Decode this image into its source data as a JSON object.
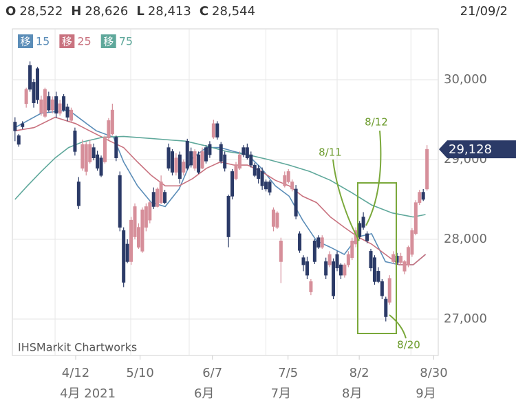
{
  "chart_data": {
    "type": "candlestick",
    "header": [
      {
        "key": "O",
        "value": "28,522"
      },
      {
        "key": "H",
        "value": "28,626"
      },
      {
        "key": "L",
        "value": "28,413"
      },
      {
        "key": "C",
        "value": "28,544"
      }
    ],
    "date": "21/09/2",
    "watermark": "IHSMarkit Chartworks",
    "ma_label": "移",
    "up_color": "#d68f9a",
    "down_color": "#2b3a67",
    "xlim": [
      -0.7,
      113
    ],
    "ylim": [
      26543,
      30638
    ],
    "yticks": [
      {
        "value": 27000,
        "label": "27,000"
      },
      {
        "value": 28000,
        "label": "28,000"
      },
      {
        "value": 29000,
        "label": "29,000"
      },
      {
        "value": 30000,
        "label": "30,000"
      }
    ],
    "xticks": [
      {
        "value": 16.2,
        "label": "4/12"
      },
      {
        "value": 33.4,
        "label": "5/10"
      },
      {
        "value": 52.7,
        "label": "6/7"
      },
      {
        "value": 72.9,
        "label": "7/5"
      },
      {
        "value": 91.9,
        "label": "8/2"
      },
      {
        "value": 111.8,
        "label": "8/30"
      }
    ],
    "month_ticks": [
      {
        "value": 10.7,
        "label": "4月 2021"
      },
      {
        "value": 46.5,
        "label": "6月"
      },
      {
        "value": 67,
        "label": "7月"
      },
      {
        "value": 86,
        "label": "8月"
      },
      {
        "value": 105.7,
        "label": "9月"
      }
    ],
    "grid_x": [
      10.7,
      30.9,
      46.5,
      67,
      86,
      105.7
    ],
    "price_tag": {
      "value": 29128,
      "label": "29,128"
    },
    "annotations": [
      "8/11",
      "8/12",
      "8/20"
    ],
    "candles": [
      [
        29470,
        29530,
        29230,
        29360
      ],
      [
        29300,
        29320,
        29160,
        29190
      ],
      [
        29450,
        29480,
        29380,
        29410
      ],
      [
        29700,
        29900,
        29650,
        29880
      ],
      [
        30180,
        30230,
        29850,
        29880
      ],
      [
        29970,
        30010,
        29650,
        29710
      ],
      [
        30140,
        30160,
        29700,
        29750
      ],
      [
        29580,
        29800,
        29550,
        29750
      ],
      [
        29540,
        29900,
        29520,
        29880
      ],
      [
        29790,
        29850,
        29600,
        29620
      ],
      [
        29620,
        29790,
        29580,
        29750
      ],
      [
        29790,
        29850,
        29520,
        29580
      ],
      [
        29580,
        29750,
        29550,
        29700
      ],
      [
        29790,
        29820,
        29600,
        29620
      ],
      [
        29660,
        29700,
        29480,
        29530
      ],
      [
        29490,
        29650,
        29470,
        29620
      ],
      [
        29360,
        29400,
        29050,
        29100
      ],
      [
        28720,
        28780,
        28380,
        28420
      ],
      [
        28890,
        29250,
        28860,
        29190
      ],
      [
        28850,
        29220,
        28800,
        29190
      ],
      [
        28970,
        29250,
        28950,
        29190
      ],
      [
        29150,
        29200,
        28990,
        29020
      ],
      [
        29060,
        29110,
        28860,
        28890
      ],
      [
        29020,
        29050,
        28780,
        28800
      ],
      [
        28970,
        29300,
        28950,
        29280
      ],
      [
        29270,
        29520,
        29250,
        29490
      ],
      [
        29320,
        29700,
        29300,
        29620
      ],
      [
        29280,
        29300,
        28980,
        29020
      ],
      [
        28800,
        28850,
        28100,
        28150
      ],
      [
        28110,
        28150,
        27400,
        27460
      ],
      [
        27940,
        28000,
        27700,
        27720
      ],
      [
        27720,
        28280,
        27680,
        28240
      ],
      [
        28030,
        28450,
        28000,
        28410
      ],
      [
        27900,
        28200,
        27880,
        28150
      ],
      [
        27850,
        28400,
        27830,
        28370
      ],
      [
        28150,
        28450,
        28100,
        28410
      ],
      [
        28240,
        28480,
        28200,
        28460
      ],
      [
        28590,
        28650,
        28380,
        28410
      ],
      [
        28410,
        28650,
        28400,
        28630
      ],
      [
        28460,
        28800,
        28440,
        28720
      ],
      [
        28590,
        28620,
        28440,
        28460
      ],
      [
        29150,
        29200,
        28860,
        28890
      ],
      [
        29100,
        29130,
        28800,
        28840
      ],
      [
        28840,
        29080,
        28800,
        29020
      ],
      [
        29060,
        29100,
        28700,
        28760
      ],
      [
        28840,
        29000,
        28800,
        28970
      ],
      [
        29230,
        29260,
        28870,
        28890
      ],
      [
        29100,
        29150,
        28900,
        28930
      ],
      [
        28890,
        29130,
        28860,
        29100
      ],
      [
        29060,
        29100,
        28820,
        28840
      ],
      [
        28890,
        29150,
        28880,
        29100
      ],
      [
        29150,
        29180,
        28950,
        28980
      ],
      [
        29190,
        29230,
        29020,
        29060
      ],
      [
        29280,
        29500,
        29260,
        29450
      ],
      [
        29450,
        29480,
        29250,
        29280
      ],
      [
        29190,
        29220,
        28950,
        28980
      ],
      [
        29060,
        29100,
        28850,
        28890
      ],
      [
        28540,
        28560,
        27900,
        28030
      ],
      [
        28850,
        28880,
        28500,
        28540
      ],
      [
        28760,
        28970,
        28740,
        28930
      ],
      [
        28890,
        29100,
        28870,
        29060
      ],
      [
        29150,
        29180,
        29030,
        29060
      ],
      [
        29150,
        29200,
        29000,
        29020
      ],
      [
        29060,
        29100,
        28900,
        28930
      ],
      [
        28930,
        28960,
        28780,
        28800
      ],
      [
        28890,
        28930,
        28700,
        28760
      ],
      [
        28850,
        28900,
        28620,
        28670
      ],
      [
        28720,
        28750,
        28600,
        28630
      ],
      [
        28720,
        28740,
        28550,
        28590
      ],
      [
        28160,
        28400,
        28100,
        28370
      ],
      [
        28150,
        28350,
        28130,
        28330
      ],
      [
        27720,
        28020,
        27450,
        27980
      ],
      [
        28670,
        28850,
        28650,
        28800
      ],
      [
        28720,
        28880,
        28700,
        28850
      ],
      [
        28630,
        28750,
        28600,
        28720
      ],
      [
        28630,
        28680,
        28250,
        28290
      ],
      [
        28070,
        28100,
        27830,
        27860
      ],
      [
        27770,
        27800,
        27600,
        27680
      ],
      [
        27720,
        27780,
        27500,
        27550
      ],
      [
        27340,
        27500,
        27300,
        27470
      ],
      [
        27980,
        28000,
        27690,
        27720
      ],
      [
        28020,
        28050,
        27880,
        27900
      ],
      [
        27900,
        28050,
        27880,
        28020
      ],
      [
        27720,
        27770,
        27500,
        27550
      ],
      [
        27680,
        27850,
        27650,
        27810
      ],
      [
        27720,
        27760,
        27250,
        27290
      ],
      [
        27810,
        27850,
        27600,
        27640
      ],
      [
        27680,
        27700,
        27500,
        27550
      ],
      [
        27550,
        27700,
        27520,
        27680
      ],
      [
        27680,
        27850,
        27650,
        27810
      ],
      [
        27770,
        28020,
        27740,
        27980
      ],
      [
        27940,
        28150,
        27900,
        28110
      ],
      [
        28200,
        28230,
        28000,
        28030
      ],
      [
        28280,
        28340,
        28120,
        28150
      ],
      [
        28070,
        28100,
        27950,
        27980
      ],
      [
        27850,
        27880,
        27600,
        27640
      ],
      [
        27770,
        27800,
        27430,
        27470
      ],
      [
        27600,
        27650,
        27450,
        27470
      ],
      [
        27470,
        27500,
        27250,
        27290
      ],
      [
        27250,
        27280,
        26970,
        27030
      ],
      [
        27210,
        27550,
        27180,
        27510
      ],
      [
        27720,
        27850,
        27690,
        27810
      ],
      [
        27790,
        27830,
        27680,
        27710
      ],
      [
        27710,
        27830,
        27680,
        27790
      ],
      [
        27600,
        27740,
        27560,
        27720
      ],
      [
        27680,
        27920,
        27650,
        27900
      ],
      [
        27810,
        28140,
        27780,
        28110
      ],
      [
        28070,
        28490,
        28050,
        28460
      ],
      [
        28460,
        28620,
        28430,
        28590
      ],
      [
        28590,
        28630,
        28480,
        28500
      ],
      [
        28630,
        29180,
        28610,
        29128
      ]
    ],
    "series": [
      {
        "name": "15",
        "color": "#5b8db8",
        "x": [
          0,
          7.0,
          14.3,
          18.0,
          21.7,
          26.3,
          29.0,
          32.7,
          36.4,
          40.1,
          43.8,
          47.4,
          51.1,
          54.8,
          58.5,
          62.1,
          65.8,
          69.5,
          73.2,
          76.8,
          80.5,
          84.2,
          87.9,
          91.5,
          95.2,
          98.9,
          102.6,
          106.3,
          109.6
        ],
        "values": [
          29400,
          29580,
          29620,
          29490,
          29360,
          29280,
          28970,
          28670,
          28460,
          28410,
          28630,
          29020,
          29150,
          29150,
          29100,
          29060,
          28890,
          28670,
          28540,
          28240,
          27980,
          27900,
          27810,
          28030,
          28070,
          27720,
          27680,
          27680,
          27810
        ]
      },
      {
        "name": "25",
        "color": "#c9727f",
        "x": [
          0,
          5.1,
          10.7,
          16.2,
          19.9,
          25.4,
          29.0,
          32.7,
          36.4,
          40.1,
          43.8,
          47.4,
          51.1,
          54.8,
          58.5,
          62.1,
          65.8,
          69.5,
          73.2,
          76.8,
          80.5,
          84.2,
          87.9,
          91.5,
          95.2,
          98.9,
          102.6,
          106.3,
          109.6
        ],
        "values": [
          29360,
          29400,
          29530,
          29450,
          29360,
          29230,
          29150,
          28970,
          28800,
          28670,
          28670,
          28760,
          28890,
          28970,
          28930,
          28930,
          28850,
          28740,
          28670,
          28540,
          28460,
          28280,
          28150,
          28030,
          27940,
          27810,
          27680,
          27680,
          27810
        ]
      },
      {
        "name": "75",
        "color": "#5fa89b",
        "x": [
          0,
          3.3,
          7.0,
          10.7,
          14.3,
          18.0,
          23.5,
          29.0,
          34.6,
          40.1,
          45.6,
          51.1,
          56.6,
          62.1,
          67.6,
          73.2,
          78.7,
          84.2,
          89.7,
          95.2,
          100.7,
          106.3,
          109.6
        ],
        "values": [
          28500,
          28670,
          28850,
          29020,
          29150,
          29220,
          29280,
          29290,
          29270,
          29250,
          29230,
          29170,
          29100,
          29060,
          29000,
          28930,
          28850,
          28740,
          28590,
          28430,
          28330,
          28280,
          28310
        ]
      }
    ]
  }
}
